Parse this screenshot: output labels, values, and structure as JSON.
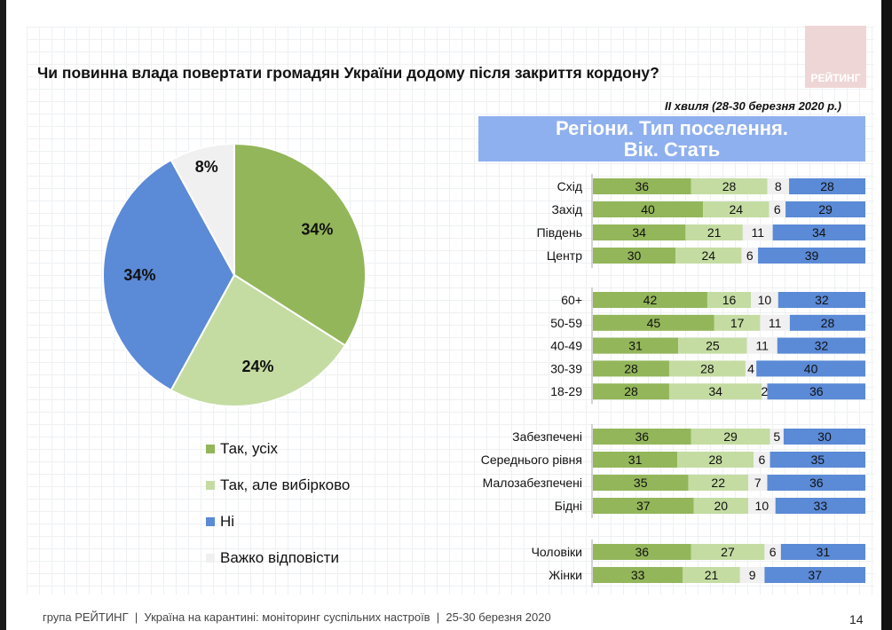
{
  "logo_text": "РЕЙТИНГ",
  "title": "Чи повинна влада повертати громадян України додому після закриття кордону?",
  "wave": "ІІ хвиля (28-30 березня 2020 р.)",
  "banner": {
    "line1": "Регіони. Тип поселення.",
    "line2": "Вік. Стать"
  },
  "colors": {
    "yes_all": "#93b65a",
    "yes_selective": "#c4dca2",
    "no": "#5b8ad6",
    "hard": "#f0f0f0",
    "banner": "#8fb0ef",
    "logo": "#efd6d6"
  },
  "legend": [
    "Так, усіх",
    "Так, але вибірково",
    "Ні",
    "Важко відповісти"
  ],
  "footer": "група РЕЙТИНГ  |  Україна на карантині: моніторинг суспільних настроїв  |  25-30 березня 2020",
  "page_number": "14",
  "chart_data": [
    {
      "type": "pie",
      "series": [
        "Так, усіх",
        "Так, але вибірково",
        "Ні",
        "Важко відповісти"
      ],
      "values": [
        34,
        24,
        34,
        8
      ],
      "labels": [
        "34%",
        "24%",
        "34%",
        "8%"
      ]
    },
    {
      "type": "bar",
      "stacked": true,
      "orientation": "horizontal",
      "series": [
        "Так, усіх",
        "Так, але вибірково",
        "Важко відповісти",
        "Ні"
      ],
      "groups": [
        {
          "rows": [
            {
              "label": "Схід",
              "values": [
                36,
                28,
                8,
                28
              ]
            },
            {
              "label": "Захід",
              "values": [
                40,
                24,
                6,
                29
              ]
            },
            {
              "label": "Південь",
              "values": [
                34,
                21,
                11,
                34
              ]
            },
            {
              "label": "Центр",
              "values": [
                30,
                24,
                6,
                39
              ]
            }
          ]
        },
        {
          "rows": [
            {
              "label": "60+",
              "values": [
                42,
                16,
                10,
                32
              ]
            },
            {
              "label": "50-59",
              "values": [
                45,
                17,
                11,
                28
              ]
            },
            {
              "label": "40-49",
              "values": [
                31,
                25,
                11,
                32
              ]
            },
            {
              "label": "30-39",
              "values": [
                28,
                28,
                4,
                40
              ]
            },
            {
              "label": "18-29",
              "values": [
                28,
                34,
                2,
                36
              ]
            }
          ]
        },
        {
          "rows": [
            {
              "label": "Забезпечені",
              "values": [
                36,
                29,
                5,
                30
              ]
            },
            {
              "label": "Середнього рівня",
              "values": [
                31,
                28,
                6,
                35
              ]
            },
            {
              "label": "Малозабезпечені",
              "values": [
                35,
                22,
                7,
                36
              ]
            },
            {
              "label": "Бідні",
              "values": [
                37,
                20,
                10,
                33
              ]
            }
          ]
        },
        {
          "rows": [
            {
              "label": "Чоловіки",
              "values": [
                36,
                27,
                6,
                31
              ]
            },
            {
              "label": "Жінки",
              "values": [
                33,
                21,
                9,
                37
              ]
            }
          ]
        }
      ]
    }
  ]
}
